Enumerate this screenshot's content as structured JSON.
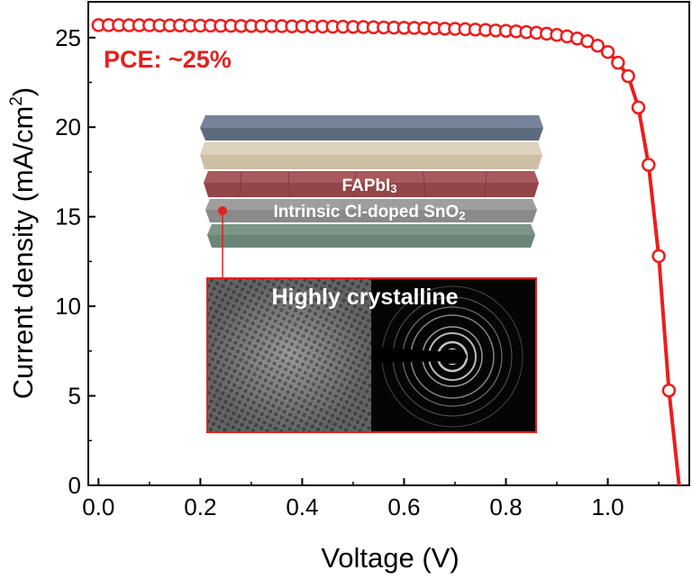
{
  "chart_data": {
    "type": "line",
    "xlabel": "Voltage (V)",
    "ylabel": "Current density (mA/cm",
    "ylabel_sup": "2",
    "ylabel_end": ")",
    "xlim": [
      -0.02,
      1.16
    ],
    "ylim": [
      0,
      27
    ],
    "x_ticks": [
      0.0,
      0.2,
      0.4,
      0.6,
      0.8,
      1.0
    ],
    "x_tick_labels": [
      "0.0",
      "0.2",
      "0.4",
      "0.6",
      "0.8",
      "1.0"
    ],
    "y_ticks": [
      0,
      5,
      10,
      15,
      20,
      25
    ],
    "y_tick_labels": [
      "0",
      "5",
      "10",
      "15",
      "20",
      "25"
    ],
    "grid": false,
    "series": [
      {
        "color": "#ee1c1c",
        "marker": "open-circle",
        "x": [
          0.0,
          0.02,
          0.04,
          0.06,
          0.08,
          0.1,
          0.12,
          0.14,
          0.16,
          0.18,
          0.2,
          0.22,
          0.24,
          0.26,
          0.28,
          0.3,
          0.32,
          0.34,
          0.36,
          0.38,
          0.4,
          0.42,
          0.44,
          0.46,
          0.48,
          0.5,
          0.52,
          0.54,
          0.56,
          0.58,
          0.6,
          0.62,
          0.64,
          0.66,
          0.68,
          0.7,
          0.72,
          0.74,
          0.76,
          0.78,
          0.8,
          0.82,
          0.84,
          0.86,
          0.88,
          0.9,
          0.92,
          0.94,
          0.96,
          0.98,
          1.0,
          1.02,
          1.04,
          1.06,
          1.08,
          1.1,
          1.12,
          1.14
        ],
        "y": [
          25.7,
          25.7,
          25.7,
          25.69,
          25.69,
          25.69,
          25.68,
          25.68,
          25.68,
          25.67,
          25.67,
          25.67,
          25.66,
          25.66,
          25.65,
          25.65,
          25.65,
          25.64,
          25.64,
          25.63,
          25.63,
          25.62,
          25.62,
          25.61,
          25.61,
          25.6,
          25.59,
          25.58,
          25.57,
          25.56,
          25.55,
          25.54,
          25.53,
          25.52,
          25.5,
          25.49,
          25.47,
          25.45,
          25.43,
          25.4,
          25.38,
          25.35,
          25.31,
          25.27,
          25.22,
          25.15,
          25.07,
          24.95,
          24.8,
          24.55,
          24.2,
          23.6,
          22.85,
          21.1,
          17.9,
          12.8,
          5.3,
          0.0
        ]
      }
    ],
    "annotations": {
      "pce": "PCE: ~25%",
      "layer_absorber": "FAPbI",
      "layer_absorber_sub": "3",
      "layer_etl": "Intrinsic Cl-doped SnO",
      "layer_etl_sub": "2",
      "inset_title": "Highly crystalline"
    },
    "colors": {
      "curve": "#ee1c1c",
      "layer_top": "#5e6b7e",
      "layer_2": "#cdbfa4",
      "layer_perovskite": "#93454a",
      "layer_snO2": "#8a8a8a",
      "layer_bottom": "#6b8576"
    }
  }
}
